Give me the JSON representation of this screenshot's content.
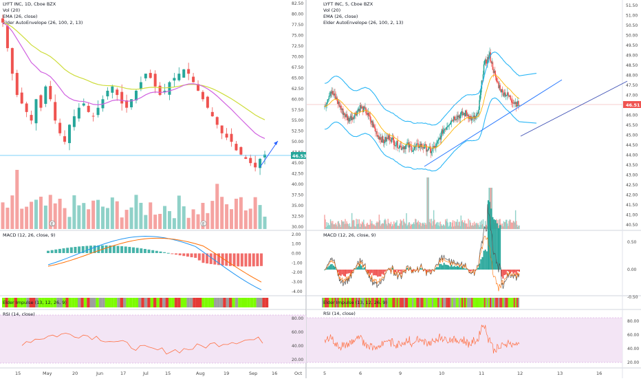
{
  "colors": {
    "up": "#26a69a",
    "down": "#ef5350",
    "vol_up": "#8fd1c8",
    "vol_down": "#f5a3a1",
    "ema": "#e040fb",
    "ema_left": "#d060e0",
    "envelope": "#29b6f6",
    "envelope_left": "#cddc39",
    "macd": "#2196f3",
    "signal": "#ff6d00",
    "rsi": "#ff7043",
    "rsi_bg": "#f3e5f5",
    "price_line": "#4fc3f7",
    "trend": "#3f51b5",
    "grid": "#e0e3eb",
    "price_badge_left": "#26a69a",
    "price_badge_right": "#ef5350",
    "impulse_green": "#7cfc00",
    "impulse_red": "#e53935",
    "impulse_gray": "#9e9e9e"
  },
  "left": {
    "title": "LYFT INC, 1D, Cboe BZX",
    "legend": [
      "Vol (20)",
      "EMA (26, close)",
      "Elder AutoEnvelope (26, 100, 2, 13)"
    ],
    "price_ticks": [
      "82.50",
      "80.00",
      "77.50",
      "75.00",
      "72.50",
      "70.00",
      "67.50",
      "65.00",
      "62.50",
      "60.00",
      "57.50",
      "55.00",
      "52.50",
      "50.00",
      "47.50",
      "45.00",
      "42.50",
      "40.00",
      "37.50",
      "35.00",
      "32.50",
      "30.00"
    ],
    "price_badge": "46.53",
    "x_ticks": [
      "15",
      "May",
      "20",
      "Jun",
      "17",
      "Jul",
      "15",
      "Aug",
      "19",
      "Sep",
      "16",
      "Oct"
    ],
    "macd_label": "MACD (12, 26, close, 9)",
    "macd_ticks": [
      "2.00",
      "1.00",
      "0.00",
      "-1.00",
      "-2.00",
      "-3.00",
      "-4.00"
    ],
    "impulse_label": "Elder Impulse (13, 12, 26, 9)",
    "rsi_label": "RSI (14, close)",
    "rsi_ticks": [
      "80.00",
      "60.00",
      "40.00",
      "20.00"
    ],
    "earnings_marker": "E"
  },
  "right": {
    "title": "LYFT INC, 5, Cboe BZX",
    "legend": [
      "Vol (20)",
      "EMA (26, close)",
      "Elder AutoEnvelope (26, 100, 2, 13)"
    ],
    "price_ticks": [
      "51.50",
      "51.00",
      "50.50",
      "50.00",
      "49.50",
      "49.00",
      "48.50",
      "48.00",
      "47.50",
      "47.00",
      "46.50",
      "46.00",
      "45.50",
      "45.00",
      "44.50",
      "44.00",
      "43.50",
      "43.00",
      "42.50",
      "42.00",
      "41.50",
      "41.00",
      "40.50"
    ],
    "price_badge": "46.51",
    "x_ticks": [
      "5",
      "6",
      "9",
      "10",
      "11",
      "12",
      "13",
      "16"
    ],
    "macd_label": "MACD (12, 26, close, 9)",
    "macd_ticks": [
      "0.50",
      "0.00",
      "-0.50"
    ],
    "impulse_label": "Elder Impulse (13, 12, 26, 9)",
    "rsi_label": "RSI (14, close)",
    "rsi_ticks": [
      "80.00",
      "60.00",
      "40.00",
      "20.00"
    ]
  },
  "chart_data": [
    {
      "type": "candlestick",
      "title": "LYFT INC, 1D, Cboe BZX",
      "ylim": [
        30,
        82.5
      ],
      "x": [
        "15",
        "May",
        "20",
        "Jun",
        "17",
        "Jul",
        "15",
        "Aug",
        "19",
        "Sep",
        "16",
        "Oct"
      ],
      "last_price": 46.53,
      "close_series": [
        78,
        72,
        66,
        61,
        59,
        57,
        55,
        60,
        58,
        63,
        60,
        55,
        52,
        50,
        54,
        56,
        58,
        59,
        57,
        56,
        58,
        60,
        62,
        63,
        61,
        59,
        58,
        60,
        62,
        64,
        66,
        65,
        63,
        61,
        62,
        64,
        65,
        66,
        67,
        66,
        64,
        62,
        60,
        58,
        56,
        54,
        52,
        51,
        50,
        48,
        47,
        46,
        45,
        44,
        46,
        47
      ]
    },
    {
      "type": "candlestick",
      "title": "LYFT INC, 5, Cboe BZX",
      "ylim": [
        40.5,
        51.5
      ],
      "x": [
        "5",
        "6",
        "9",
        "10",
        "11",
        "12",
        "13",
        "16"
      ],
      "last_price": 46.51,
      "close_series": [
        46.5,
        47.2,
        46.8,
        46.2,
        45.8,
        46.0,
        46.4,
        46.2,
        45.6,
        45.0,
        44.7,
        44.9,
        44.6,
        44.4,
        44.5,
        44.3,
        44.5,
        44.4,
        44.2,
        44.5,
        45.2,
        45.6,
        45.9,
        46.0,
        46.1,
        45.8,
        46.0,
        48.5,
        49.0,
        47.8,
        47.2,
        47.0,
        46.7,
        46.5
      ]
    }
  ]
}
